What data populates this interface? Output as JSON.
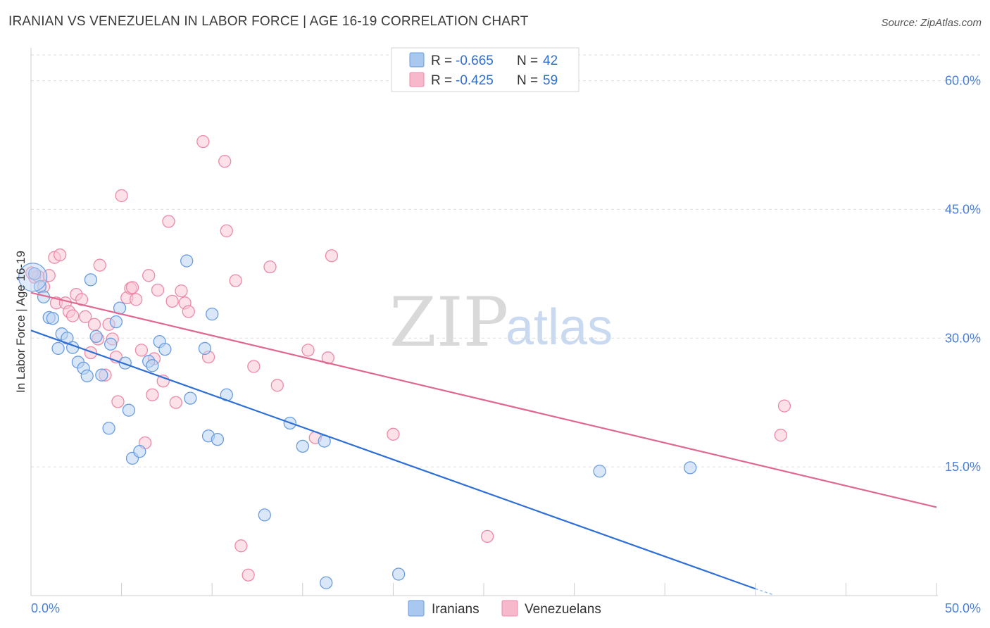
{
  "title": "IRANIAN VS VENEZUELAN IN LABOR FORCE | AGE 16-19 CORRELATION CHART",
  "source": "Source: ZipAtlas.com",
  "watermark": {
    "zip": "ZIP",
    "atlas": "atlas"
  },
  "legend_box": {
    "rows": [
      {
        "r_label": "R =",
        "r_value": "-0.665",
        "n_label": "N =",
        "n_value": "42",
        "color": "#a8c8f0"
      },
      {
        "r_label": "R =",
        "r_value": "-0.425",
        "n_label": "N =",
        "n_value": "59",
        "color": "#f7b8cb"
      }
    ]
  },
  "chart_data": {
    "type": "scatter",
    "title": "IRANIAN VS VENEZUELAN IN LABOR FORCE | AGE 16-19 CORRELATION CHART",
    "xlabel": "",
    "ylabel": "In Labor Force | Age 16-19",
    "xlim": [
      0,
      50
    ],
    "ylim": [
      0,
      63
    ],
    "x_tick_labels": [
      "0.0%",
      "50.0%"
    ],
    "y_ticks": [
      15,
      30,
      45,
      60
    ],
    "y_tick_labels": [
      "15.0%",
      "30.0%",
      "45.0%",
      "60.0%"
    ],
    "grid": true,
    "legend": [
      "Iranians",
      "Venezuelans"
    ],
    "series": [
      {
        "name": "Iranians",
        "color": "#6a9de0",
        "fill": "#b9d3f3",
        "trend": {
          "x": [
            0,
            40
          ],
          "y": [
            30.9,
            0.8
          ],
          "dashed_to": [
            41,
            0.1
          ]
        },
        "points": [
          [
            0.2,
            37.5
          ],
          [
            0.5,
            36.0
          ],
          [
            0.7,
            34.8
          ],
          [
            1.0,
            32.4
          ],
          [
            1.2,
            32.3
          ],
          [
            1.7,
            30.5
          ],
          [
            2.0,
            30.0
          ],
          [
            2.3,
            28.9
          ],
          [
            1.5,
            28.8
          ],
          [
            2.6,
            27.2
          ],
          [
            2.9,
            26.5
          ],
          [
            3.1,
            25.6
          ],
          [
            3.3,
            36.8
          ],
          [
            3.6,
            30.2
          ],
          [
            3.9,
            25.7
          ],
          [
            4.4,
            29.3
          ],
          [
            4.7,
            31.9
          ],
          [
            4.9,
            33.5
          ],
          [
            5.2,
            27.1
          ],
          [
            5.4,
            21.6
          ],
          [
            4.3,
            19.5
          ],
          [
            5.6,
            16.0
          ],
          [
            6.0,
            16.8
          ],
          [
            6.5,
            27.3
          ],
          [
            6.7,
            26.8
          ],
          [
            7.1,
            29.6
          ],
          [
            7.4,
            28.7
          ],
          [
            8.6,
            39.0
          ],
          [
            8.8,
            23.0
          ],
          [
            9.6,
            28.8
          ],
          [
            10.0,
            32.8
          ],
          [
            9.8,
            18.6
          ],
          [
            10.3,
            18.2
          ],
          [
            10.8,
            23.4
          ],
          [
            12.9,
            9.4
          ],
          [
            14.3,
            20.1
          ],
          [
            15.0,
            17.4
          ],
          [
            16.2,
            18.0
          ],
          [
            16.3,
            1.5
          ],
          [
            20.3,
            2.5
          ],
          [
            31.4,
            14.5
          ],
          [
            36.4,
            14.9
          ]
        ]
      },
      {
        "name": "Venezuelans",
        "color": "#ec8aa8",
        "fill": "#f9c9d7",
        "trend": {
          "x": [
            0,
            50
          ],
          "y": [
            35.3,
            10.3
          ]
        },
        "points": [
          [
            0.2,
            37.1
          ],
          [
            0.4,
            37.2
          ],
          [
            0.7,
            36.0
          ],
          [
            1.0,
            37.3
          ],
          [
            1.3,
            39.4
          ],
          [
            1.4,
            34.1
          ],
          [
            1.6,
            39.7
          ],
          [
            1.9,
            34.1
          ],
          [
            2.1,
            33.1
          ],
          [
            2.3,
            32.6
          ],
          [
            2.5,
            35.1
          ],
          [
            2.8,
            34.5
          ],
          [
            3.0,
            32.5
          ],
          [
            3.3,
            28.3
          ],
          [
            3.5,
            31.6
          ],
          [
            3.7,
            29.9
          ],
          [
            3.8,
            38.5
          ],
          [
            4.1,
            25.7
          ],
          [
            4.3,
            31.6
          ],
          [
            4.5,
            29.9
          ],
          [
            4.7,
            27.8
          ],
          [
            4.8,
            22.6
          ],
          [
            5.0,
            46.6
          ],
          [
            5.3,
            34.7
          ],
          [
            5.5,
            35.8
          ],
          [
            5.6,
            35.9
          ],
          [
            5.8,
            34.5
          ],
          [
            6.1,
            28.6
          ],
          [
            6.3,
            17.8
          ],
          [
            6.5,
            37.3
          ],
          [
            6.7,
            23.4
          ],
          [
            6.8,
            27.6
          ],
          [
            7.0,
            35.6
          ],
          [
            7.3,
            25.0
          ],
          [
            7.6,
            43.6
          ],
          [
            7.8,
            34.3
          ],
          [
            8.0,
            22.5
          ],
          [
            8.3,
            35.5
          ],
          [
            8.5,
            34.1
          ],
          [
            8.7,
            33.1
          ],
          [
            9.5,
            52.9
          ],
          [
            9.8,
            27.8
          ],
          [
            10.7,
            50.6
          ],
          [
            10.8,
            42.5
          ],
          [
            11.3,
            36.7
          ],
          [
            11.6,
            5.8
          ],
          [
            12.0,
            2.4
          ],
          [
            12.3,
            26.7
          ],
          [
            13.2,
            38.3
          ],
          [
            13.6,
            24.5
          ],
          [
            15.3,
            28.6
          ],
          [
            15.7,
            18.4
          ],
          [
            16.4,
            27.7
          ],
          [
            16.6,
            39.6
          ],
          [
            20.0,
            18.8
          ],
          [
            25.2,
            6.9
          ],
          [
            41.4,
            18.7
          ],
          [
            41.6,
            22.1
          ],
          [
            0.05,
            37.6
          ]
        ]
      }
    ]
  },
  "bottom_legend": {
    "iranians": "Iranians",
    "venezuelans": "Venezuelans"
  }
}
